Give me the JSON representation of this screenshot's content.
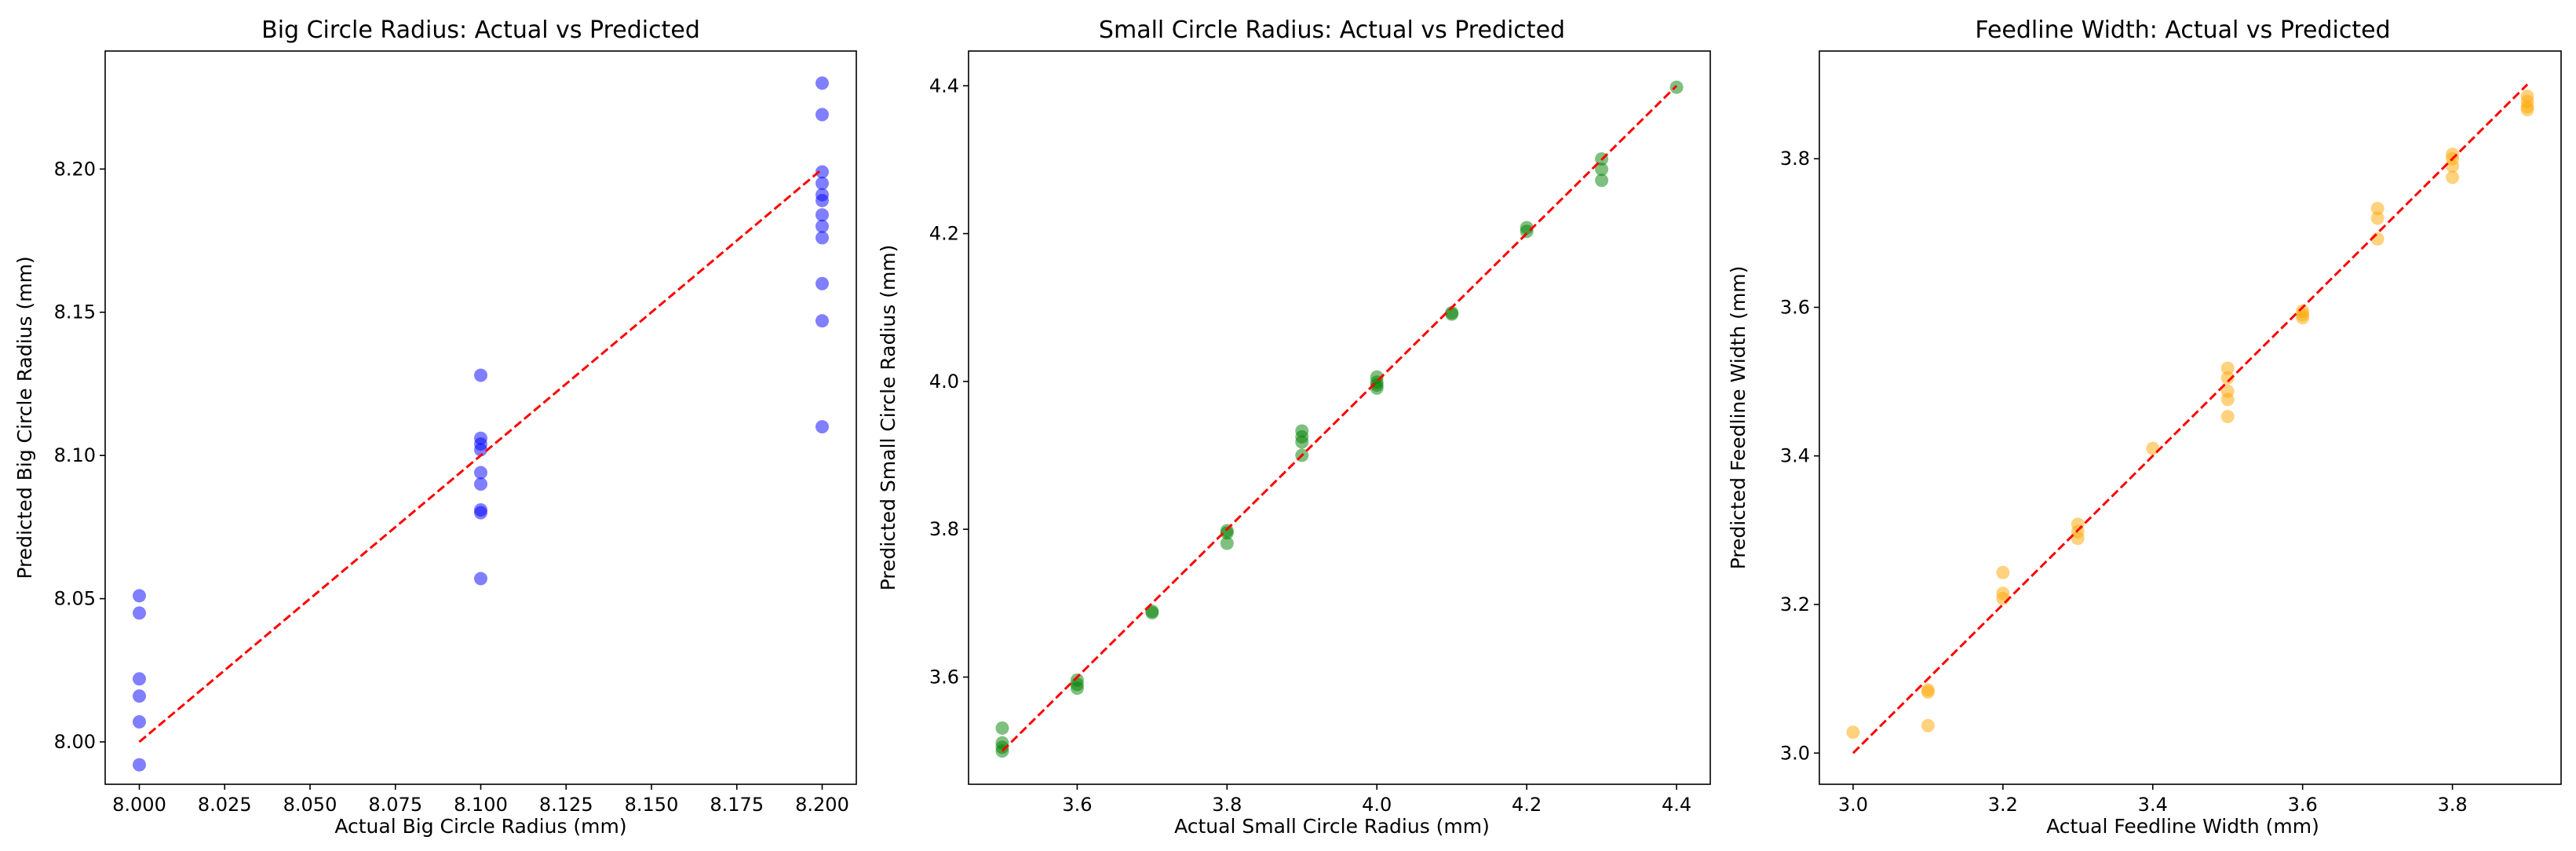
{
  "chart_data": [
    {
      "type": "scatter",
      "title": "Big Circle Radius: Actual vs Predicted",
      "xlabel": "Actual Big Circle Radius (mm)",
      "ylabel": "Predicted Big Circle Radius (mm)",
      "xlim": [
        7.99,
        8.21
      ],
      "ylim": [
        7.9852,
        8.2412
      ],
      "xticks": [
        8.0,
        8.025,
        8.05,
        8.075,
        8.1,
        8.125,
        8.15,
        8.175,
        8.2
      ],
      "xtick_labels": [
        "8.000",
        "8.025",
        "8.050",
        "8.075",
        "8.100",
        "8.125",
        "8.150",
        "8.175",
        "8.200"
      ],
      "yticks": [
        8.0,
        8.05,
        8.1,
        8.15,
        8.2
      ],
      "ytick_labels": [
        "8.00",
        "8.05",
        "8.10",
        "8.15",
        "8.20"
      ],
      "point_color": "#0000ff",
      "line_color": "#ff0000",
      "reference_line": [
        [
          8.0,
          8.0
        ],
        [
          8.2,
          8.2
        ]
      ],
      "points": [
        [
          8.0,
          8.051
        ],
        [
          8.0,
          8.045
        ],
        [
          8.0,
          8.022
        ],
        [
          8.0,
          8.016
        ],
        [
          8.0,
          8.007
        ],
        [
          8.0,
          7.992
        ],
        [
          8.1,
          8.128
        ],
        [
          8.1,
          8.106
        ],
        [
          8.1,
          8.104
        ],
        [
          8.1,
          8.102
        ],
        [
          8.1,
          8.094
        ],
        [
          8.1,
          8.09
        ],
        [
          8.1,
          8.081
        ],
        [
          8.1,
          8.08
        ],
        [
          8.1,
          8.057
        ],
        [
          8.2,
          8.23
        ],
        [
          8.2,
          8.219
        ],
        [
          8.2,
          8.199
        ],
        [
          8.2,
          8.195
        ],
        [
          8.2,
          8.191
        ],
        [
          8.2,
          8.189
        ],
        [
          8.2,
          8.184
        ],
        [
          8.2,
          8.18
        ],
        [
          8.2,
          8.176
        ],
        [
          8.2,
          8.16
        ],
        [
          8.2,
          8.147
        ],
        [
          8.2,
          8.11
        ]
      ]
    },
    {
      "type": "scatter",
      "title": "Small Circle Radius: Actual vs Predicted",
      "xlabel": "Actual Small Circle Radius (mm)",
      "ylabel": "Predicted Small Circle Radius (mm)",
      "xlim": [
        3.455,
        4.445
      ],
      "ylim": [
        3.455,
        4.447
      ],
      "xticks": [
        3.6,
        3.8,
        4.0,
        4.2,
        4.4
      ],
      "xtick_labels": [
        "3.6",
        "3.8",
        "4.0",
        "4.2",
        "4.4"
      ],
      "yticks": [
        3.6,
        3.8,
        4.0,
        4.2,
        4.4
      ],
      "ytick_labels": [
        "3.6",
        "3.8",
        "4.0",
        "4.2",
        "4.4"
      ],
      "point_color": "#008000",
      "line_color": "#ff0000",
      "reference_line": [
        [
          3.5,
          3.5
        ],
        [
          4.4,
          4.4
        ]
      ],
      "points": [
        [
          3.5,
          3.531
        ],
        [
          3.5,
          3.511
        ],
        [
          3.5,
          3.505
        ],
        [
          3.5,
          3.5
        ],
        [
          3.6,
          3.596
        ],
        [
          3.6,
          3.59
        ],
        [
          3.6,
          3.585
        ],
        [
          3.7,
          3.689
        ],
        [
          3.7,
          3.687
        ],
        [
          3.8,
          3.798
        ],
        [
          3.8,
          3.795
        ],
        [
          3.8,
          3.781
        ],
        [
          3.9,
          3.933
        ],
        [
          3.9,
          3.925
        ],
        [
          3.9,
          3.918
        ],
        [
          3.9,
          3.9
        ],
        [
          4.0,
          4.006
        ],
        [
          4.0,
          3.999
        ],
        [
          4.0,
          3.995
        ],
        [
          4.0,
          3.991
        ],
        [
          4.1,
          4.093
        ],
        [
          4.1,
          4.091
        ],
        [
          4.2,
          4.208
        ],
        [
          4.2,
          4.203
        ],
        [
          4.3,
          4.301
        ],
        [
          4.3,
          4.287
        ],
        [
          4.3,
          4.272
        ],
        [
          4.4,
          4.398
        ]
      ]
    },
    {
      "type": "scatter",
      "title": "Feedline Width: Actual vs Predicted",
      "xlabel": "Actual Feedline Width (mm)",
      "ylabel": "Predicted Feedline Width (mm)",
      "xlim": [
        2.955,
        3.945
      ],
      "ylim": [
        2.958,
        3.945
      ],
      "xticks": [
        3.0,
        3.2,
        3.4,
        3.6,
        3.8
      ],
      "xtick_labels": [
        "3.0",
        "3.2",
        "3.4",
        "3.6",
        "3.8"
      ],
      "yticks": [
        3.0,
        3.2,
        3.4,
        3.6,
        3.8
      ],
      "ytick_labels": [
        "3.0",
        "3.2",
        "3.4",
        "3.6",
        "3.8"
      ],
      "point_color": "#ffa500",
      "line_color": "#ff0000",
      "reference_line": [
        [
          3.0,
          3.0
        ],
        [
          3.9,
          3.9
        ]
      ],
      "points": [
        [
          3.0,
          3.028
        ],
        [
          3.1,
          3.085
        ],
        [
          3.1,
          3.082
        ],
        [
          3.1,
          3.037
        ],
        [
          3.2,
          3.243
        ],
        [
          3.2,
          3.215
        ],
        [
          3.2,
          3.208
        ],
        [
          3.3,
          3.308
        ],
        [
          3.3,
          3.298
        ],
        [
          3.3,
          3.289
        ],
        [
          3.4,
          3.41
        ],
        [
          3.5,
          3.518
        ],
        [
          3.5,
          3.505
        ],
        [
          3.5,
          3.487
        ],
        [
          3.5,
          3.476
        ],
        [
          3.5,
          3.453
        ],
        [
          3.6,
          3.595
        ],
        [
          3.6,
          3.59
        ],
        [
          3.6,
          3.586
        ],
        [
          3.7,
          3.733
        ],
        [
          3.7,
          3.72
        ],
        [
          3.7,
          3.692
        ],
        [
          3.8,
          3.806
        ],
        [
          3.8,
          3.8
        ],
        [
          3.8,
          3.79
        ],
        [
          3.8,
          3.775
        ],
        [
          3.9,
          3.884
        ],
        [
          3.9,
          3.877
        ],
        [
          3.9,
          3.87
        ],
        [
          3.9,
          3.866
        ]
      ]
    }
  ]
}
